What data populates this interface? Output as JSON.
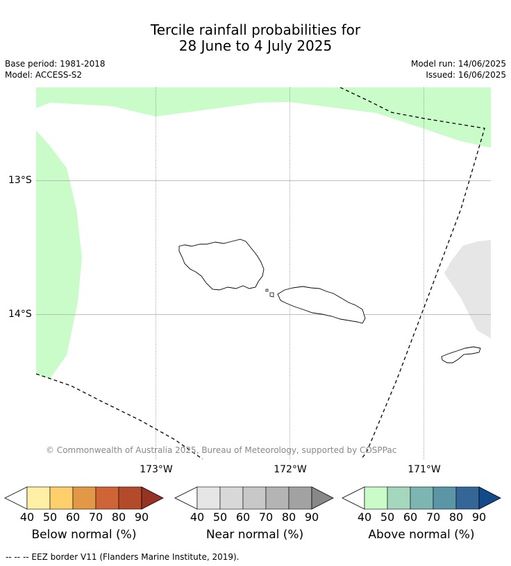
{
  "title": {
    "line1": "Tercile rainfall probabilities for",
    "line2": "28 June to 4 July 2025"
  },
  "meta": {
    "base_period": "Base period: 1981-2018",
    "model": "Model: ACCESS-S2",
    "model_run": "Model run: 14/06/2025",
    "issued": "Issued: 16/06/2025"
  },
  "map": {
    "copyright": "© Commonwealth of Australia 2025, Bureau of Meteorology, supported by COSPPac",
    "lon_labels": [
      "173°W",
      "172°W",
      "171°W"
    ],
    "lat_labels": [
      "13°S",
      "14°S"
    ]
  },
  "colorbars": [
    {
      "name": "Below normal (%)",
      "ticks": [
        "40",
        "50",
        "60",
        "70",
        "80",
        "90"
      ],
      "colors": [
        "#ffffff",
        "#fff0a5",
        "#fecf6a",
        "#e39847",
        "#cf6436",
        "#b34b2a",
        "#963424"
      ]
    },
    {
      "name": "Near normal (%)",
      "ticks": [
        "40",
        "50",
        "60",
        "70",
        "80",
        "90"
      ],
      "colors": [
        "#ffffff",
        "#e6e6e6",
        "#d8d8d8",
        "#c8c8c8",
        "#b4b4b4",
        "#a2a2a2",
        "#888888"
      ]
    },
    {
      "name": "Above normal (%)",
      "ticks": [
        "40",
        "50",
        "60",
        "70",
        "80",
        "90"
      ],
      "colors": [
        "#ffffff",
        "#c9fcc9",
        "#a4d7bd",
        "#7cb5b1",
        "#5b96a6",
        "#346698",
        "#124a8a"
      ]
    }
  ],
  "footer": "--  --  -- EEZ border V11 (Flanders Marine Institute, 2019)."
}
